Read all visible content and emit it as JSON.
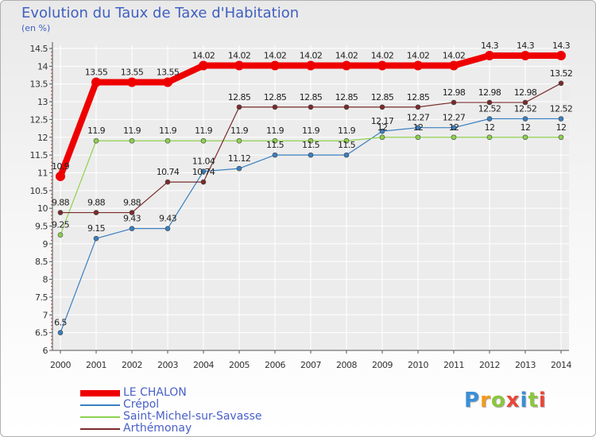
{
  "title": "Evolution du Taux de Taxe d'Habitation",
  "unit": "(en %)",
  "brand": {
    "text": "Proxiti",
    "colors": [
      "#3a8fd8",
      "#f29a1c",
      "#8cc63f",
      "#e8463a",
      "#3a8fd8",
      "#8cc63f",
      "#e8463a"
    ]
  },
  "colors": {
    "grid": "#ffffff",
    "axis": "#555555",
    "tick_red": "#cc3333",
    "text": "#333333"
  },
  "chart_data": {
    "type": "line",
    "title": "Evolution du Taux de Taxe d'Habitation",
    "ylabel": "(en %)",
    "xlabel": "",
    "x": [
      "2000",
      "2001",
      "2002",
      "2003",
      "2004",
      "2005",
      "2006",
      "2007",
      "2008",
      "2009",
      "2010",
      "2011",
      "2012",
      "2013",
      "2014"
    ],
    "ylim": [
      6,
      14.5
    ],
    "yticks": [
      "6",
      "6.5",
      "7",
      "7.5",
      "8",
      "8.5",
      "9",
      "9.5",
      "10",
      "10.5",
      "11",
      "11.5",
      "12",
      "12.5",
      "13",
      "13.5",
      "14",
      "14.5"
    ],
    "grid": true,
    "legend": "bottom",
    "series": [
      {
        "name": "LE CHALON",
        "color": "#ee0000",
        "width": "thick",
        "values": [
          10.9,
          13.55,
          13.55,
          13.55,
          14.02,
          14.02,
          14.02,
          14.02,
          14.02,
          14.02,
          14.02,
          14.02,
          14.3,
          14.3,
          14.3
        ],
        "labels": [
          "10.9",
          "13.55",
          "13.55",
          "13.55",
          "14.02",
          "14.02",
          "14.02",
          "14.02",
          "14.02",
          "14.02",
          "14.02",
          "14.02",
          "14.3",
          "14.3",
          "14.3"
        ]
      },
      {
        "name": "Crépol",
        "color": "#3a7fc0",
        "width": "thin",
        "values": [
          6.5,
          9.15,
          9.43,
          9.43,
          11.04,
          11.12,
          11.5,
          11.5,
          11.5,
          12.17,
          12.27,
          12.27,
          12.52,
          12.52,
          12.52
        ],
        "labels": [
          "6.5",
          "9.15",
          "9.43",
          "9.43",
          "11.04",
          "11.12",
          "11.5",
          "11.5",
          "11.5",
          "12.17",
          "12.27",
          "12.27",
          "12.52",
          "12.52",
          "12.52"
        ]
      },
      {
        "name": "Saint-Michel-sur-Savasse",
        "color": "#8fd14f",
        "width": "thin",
        "values": [
          9.25,
          11.9,
          11.9,
          11.9,
          11.9,
          11.9,
          11.9,
          11.9,
          11.9,
          12,
          12,
          12,
          12,
          12,
          12
        ],
        "labels": [
          "9.25",
          "11.9",
          "11.9",
          "11.9",
          "11.9",
          "11.9",
          "11.9",
          "11.9",
          "11.9",
          "12",
          "12",
          "12",
          "12",
          "12",
          "12"
        ]
      },
      {
        "name": "Arthémonay",
        "color": "#7a2b2b",
        "width": "thin",
        "values": [
          9.88,
          9.88,
          9.88,
          10.74,
          10.74,
          12.85,
          12.85,
          12.85,
          12.85,
          12.85,
          12.85,
          12.98,
          12.98,
          12.98,
          13.52
        ],
        "labels": [
          "9.88",
          "9.88",
          "9.88",
          "10.74",
          "10.74",
          "12.85",
          "12.85",
          "12.85",
          "12.85",
          "12.85",
          "12.85",
          "12.98",
          "12.98",
          "12.98",
          "13.52"
        ]
      }
    ]
  }
}
